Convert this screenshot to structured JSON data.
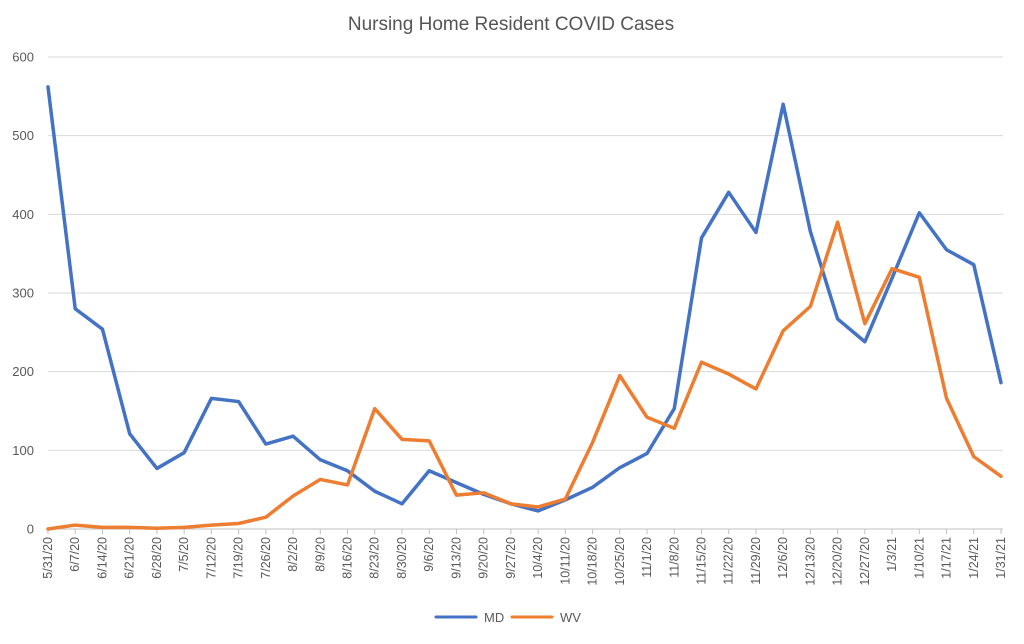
{
  "chart_data": {
    "type": "line",
    "title": "Nursing Home Resident COVID Cases",
    "xlabel": "",
    "ylabel": "",
    "ylim": [
      0,
      600
    ],
    "yticks": [
      0,
      100,
      200,
      300,
      400,
      500,
      600
    ],
    "grid": true,
    "legend_position": "bottom",
    "categories": [
      "5/31/20",
      "6/7/20",
      "6/14/20",
      "6/21/20",
      "6/28/20",
      "7/5/20",
      "7/12/20",
      "7/19/20",
      "7/26/20",
      "8/2/20",
      "8/9/20",
      "8/16/20",
      "8/23/20",
      "8/30/20",
      "9/6/20",
      "9/13/20",
      "9/20/20",
      "9/27/20",
      "10/4/20",
      "10/11/20",
      "10/18/20",
      "10/25/20",
      "11/1/20",
      "11/8/20",
      "11/15/20",
      "11/22/20",
      "11/29/20",
      "12/6/20",
      "12/13/20",
      "12/20/20",
      "12/27/20",
      "1/3/21",
      "1/10/21",
      "1/17/21",
      "1/24/21",
      "1/31/21"
    ],
    "series": [
      {
        "name": "MD",
        "color": "#4472C4",
        "values": [
          562,
          280,
          254,
          121,
          77,
          97,
          166,
          162,
          108,
          118,
          88,
          74,
          48,
          32,
          74,
          59,
          44,
          32,
          23,
          37,
          53,
          78,
          96,
          153,
          370,
          428,
          377,
          540,
          378,
          267,
          238,
          319,
          402,
          355,
          336,
          186
        ]
      },
      {
        "name": "WV",
        "color": "#ED7D31",
        "values": [
          0,
          5,
          2,
          2,
          1,
          2,
          5,
          7,
          15,
          42,
          63,
          56,
          153,
          114,
          112,
          43,
          46,
          32,
          28,
          38,
          110,
          195,
          142,
          128,
          212,
          197,
          178,
          252,
          283,
          390,
          261,
          331,
          320,
          166,
          92,
          67
        ]
      }
    ]
  }
}
